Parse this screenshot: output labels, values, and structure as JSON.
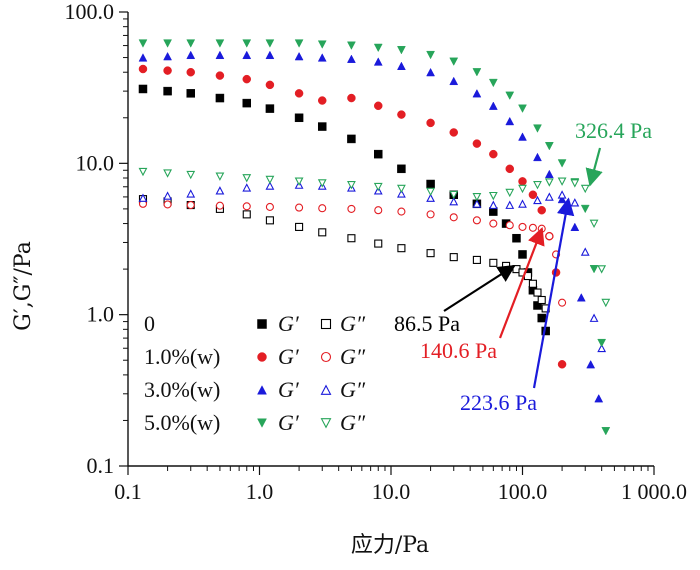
{
  "chart_data": {
    "type": "scatter",
    "x_scale": "log",
    "y_scale": "log",
    "xlim": [
      0.1,
      1000.0
    ],
    "ylim": [
      0.1,
      100.0
    ],
    "xlabel": "应力/Pa",
    "ylabel": "G′,G″/Pa",
    "x_tick_labels": [
      "0.1",
      "1.0",
      "10.0",
      "100.0",
      "1 000.0"
    ],
    "y_tick_labels": [
      "0.1",
      "1.0",
      "10.0",
      "100.0"
    ],
    "legend": {
      "placement": "bottom-left",
      "rows": [
        {
          "label": "0",
          "g1": "G′",
          "g2": "G″",
          "color": "#000000"
        },
        {
          "label": "1.0%(w)",
          "g1": "G′",
          "g2": "G″",
          "color": "#e31e24"
        },
        {
          "label": "3.0%(w)",
          "g1": "G′",
          "g2": "G″",
          "color": "#1a1adb"
        },
        {
          "label": "5.0%(w)",
          "g1": "G′",
          "g2": "G″",
          "color": "#27a55a"
        }
      ]
    },
    "series": [
      {
        "name": "0 G′",
        "marker": "square-filled",
        "color": "#000000",
        "x": [
          0.13,
          0.2,
          0.3,
          0.5,
          0.8,
          1.2,
          2,
          3,
          5,
          8,
          12,
          20,
          30,
          45,
          60,
          75,
          90,
          100,
          110,
          120,
          130,
          140,
          150
        ],
        "y": [
          31,
          30,
          29,
          27,
          25,
          23,
          20,
          17.5,
          14.5,
          11.5,
          9.2,
          7.3,
          6.2,
          5.4,
          4.8,
          4.0,
          3.2,
          2.5,
          1.9,
          1.45,
          1.15,
          0.95,
          0.78
        ]
      },
      {
        "name": "0 G″",
        "marker": "square-open",
        "color": "#000000",
        "x": [
          0.13,
          0.2,
          0.3,
          0.5,
          0.8,
          1.2,
          2,
          3,
          5,
          8,
          12,
          20,
          30,
          45,
          60,
          75,
          90,
          100,
          110,
          120,
          130,
          140,
          150
        ],
        "y": [
          5.8,
          5.6,
          5.3,
          5.0,
          4.6,
          4.2,
          3.8,
          3.5,
          3.2,
          2.95,
          2.75,
          2.55,
          2.4,
          2.3,
          2.2,
          2.1,
          2.0,
          1.9,
          1.8,
          1.6,
          1.4,
          1.25,
          1.1
        ]
      },
      {
        "name": "1.0%(w) G′",
        "marker": "circle-filled",
        "color": "#e31e24",
        "x": [
          0.13,
          0.2,
          0.3,
          0.5,
          0.8,
          1.2,
          2,
          3,
          5,
          8,
          12,
          20,
          30,
          45,
          60,
          80,
          100,
          120,
          140,
          160,
          180,
          200
        ],
        "y": [
          42,
          41,
          40,
          38,
          36,
          33,
          29,
          26,
          27,
          24,
          21,
          18.5,
          16,
          13.5,
          11.5,
          9.2,
          7.6,
          6.2,
          4.9,
          3.3,
          1.9,
          0.47
        ]
      },
      {
        "name": "1.0%(w) G″",
        "marker": "circle-open",
        "color": "#e31e24",
        "x": [
          0.13,
          0.2,
          0.3,
          0.5,
          0.8,
          1.2,
          2,
          3,
          5,
          8,
          12,
          20,
          30,
          45,
          60,
          80,
          100,
          120,
          140,
          160,
          180,
          200
        ],
        "y": [
          5.4,
          5.35,
          5.3,
          5.25,
          5.2,
          5.15,
          5.1,
          5.05,
          5.0,
          4.9,
          4.8,
          4.6,
          4.4,
          4.2,
          4.0,
          3.9,
          3.8,
          3.75,
          3.7,
          3.3,
          2.5,
          1.2
        ]
      },
      {
        "name": "3.0%(w) G′",
        "marker": "triangle-filled",
        "color": "#1a1adb",
        "x": [
          0.13,
          0.2,
          0.3,
          0.5,
          0.8,
          1.2,
          2,
          3,
          5,
          8,
          12,
          20,
          30,
          45,
          60,
          80,
          100,
          130,
          160,
          200,
          250,
          280,
          330,
          380
        ],
        "y": [
          50,
          51,
          52,
          52,
          52,
          52,
          51,
          50,
          49,
          47,
          44,
          40,
          35,
          29,
          24,
          19,
          15,
          11,
          8.5,
          5.8,
          3.8,
          1.3,
          0.47,
          0.28
        ]
      },
      {
        "name": "3.0%(w) G″",
        "marker": "triangle-open",
        "color": "#1a1adb",
        "x": [
          0.13,
          0.2,
          0.3,
          0.5,
          0.8,
          1.2,
          2,
          3,
          5,
          8,
          12,
          20,
          30,
          45,
          60,
          80,
          100,
          130,
          160,
          200,
          250,
          300,
          350,
          400
        ],
        "y": [
          5.9,
          6.1,
          6.3,
          6.6,
          6.9,
          7.1,
          7.2,
          7.1,
          6.9,
          6.6,
          6.3,
          5.9,
          5.6,
          5.4,
          5.3,
          5.3,
          5.4,
          5.7,
          6.0,
          6.2,
          5.5,
          2.6,
          0.95,
          0.6
        ]
      },
      {
        "name": "5.0%(w) G′",
        "marker": "triangle-down-filled",
        "color": "#27a55a",
        "x": [
          0.13,
          0.2,
          0.3,
          0.5,
          0.8,
          1.2,
          2,
          3,
          5,
          8,
          12,
          20,
          30,
          45,
          60,
          80,
          100,
          130,
          160,
          200,
          250,
          300,
          350,
          400,
          430
        ],
        "y": [
          62,
          62,
          62,
          62,
          62,
          62,
          62,
          61,
          60,
          58,
          56,
          52,
          47,
          40,
          34,
          28,
          23,
          17,
          13,
          10,
          7.5,
          5.0,
          2.0,
          0.65,
          0.17
        ]
      },
      {
        "name": "5.0%(w) G″",
        "marker": "triangle-down-open",
        "color": "#27a55a",
        "x": [
          0.13,
          0.2,
          0.3,
          0.5,
          0.8,
          1.2,
          2,
          3,
          5,
          8,
          12,
          20,
          30,
          45,
          60,
          80,
          100,
          130,
          160,
          200,
          250,
          300,
          350,
          400,
          430
        ],
        "y": [
          8.8,
          8.6,
          8.4,
          8.2,
          8.0,
          7.8,
          7.6,
          7.4,
          7.2,
          7.0,
          6.8,
          6.5,
          6.2,
          6.0,
          6.1,
          6.4,
          6.8,
          7.2,
          7.5,
          7.6,
          7.4,
          6.8,
          4.0,
          2.0,
          1.2
        ]
      }
    ],
    "annotations": [
      {
        "text": "86.5 Pa",
        "color": "#000000",
        "target_x": 86.5,
        "target_y": 2.1
      },
      {
        "text": "140.6 Pa",
        "color": "#e31e24",
        "target_x": 140.6,
        "target_y": 3.7
      },
      {
        "text": "223.6 Pa",
        "color": "#1a1adb",
        "target_x": 223.6,
        "target_y": 5.8
      },
      {
        "text": "326.4 Pa",
        "color": "#27a55a",
        "target_x": 326.4,
        "target_y": 7.2
      }
    ]
  }
}
